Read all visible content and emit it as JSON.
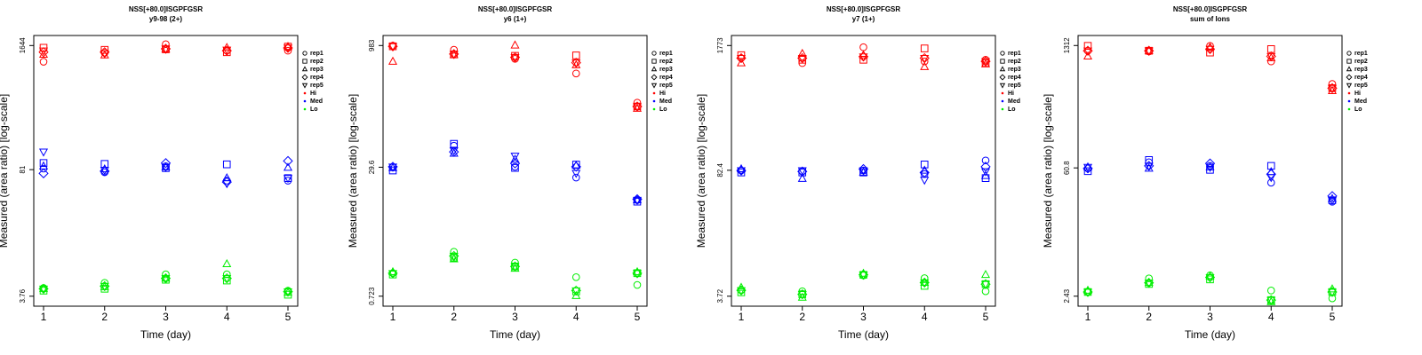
{
  "chart_data": [
    {
      "type": "scatter",
      "title": "NSS[+80.0]ISGPFGSR",
      "subtitle": "y9-98 (2+)",
      "xlabel": "Time (day)",
      "ylabel": "Measured (area ratio) [log-scale]",
      "x": [
        1,
        2,
        3,
        4,
        5
      ],
      "xlim": [
        0.84,
        5.16
      ],
      "xticks": [
        1,
        2,
        3,
        4,
        5
      ],
      "ylim": [
        2.95,
        2097
      ],
      "yticks": [
        3.76,
        81,
        1644
      ],
      "log_y": true,
      "markers": [
        {
          "name": "rep1",
          "shape": "circle"
        },
        {
          "name": "rep2",
          "shape": "square"
        },
        {
          "name": "rep3",
          "shape": "triangle-up"
        },
        {
          "name": "rep4",
          "shape": "diamond"
        },
        {
          "name": "rep5",
          "shape": "triangle-down"
        }
      ],
      "series": [
        {
          "name": "Hi",
          "color": "#ff0000",
          "values": [
            [
              1110,
              1560,
              1320,
              1400,
              1450
            ],
            [
              1380,
              1480,
              1300,
              1400,
              1350
            ],
            [
              1700,
              1500,
              1500,
              1520,
              1520
            ],
            [
              1450,
              1400,
              1560,
              1450,
              1480
            ],
            [
              1450,
              1600,
              1600,
              1550,
              1560
            ]
          ]
        },
        {
          "name": "Med",
          "color": "#0000ff",
          "values": [
            [
              83,
              95,
              88,
              74,
              125
            ],
            [
              76,
              93,
              82,
              78,
              80
            ],
            [
              88,
              84,
              86,
              95,
              86
            ],
            [
              62,
              92,
              66,
              60,
              58
            ],
            [
              62,
              66,
              85,
              100,
              66
            ]
          ]
        },
        {
          "name": "Lo",
          "color": "#00ee00",
          "values": [
            [
              4.6,
              4.3,
              4.5,
              4.5,
              4.5
            ],
            [
              5.2,
              4.5,
              4.7,
              4.8,
              4.8
            ],
            [
              6.4,
              5.6,
              5.8,
              5.8,
              5.8
            ],
            [
              6.4,
              5.5,
              8.2,
              5.8,
              5.8
            ],
            [
              4.3,
              3.9,
              4.1,
              4.2,
              4.2
            ]
          ]
        }
      ]
    },
    {
      "type": "scatter",
      "title": "NSS[+80.0]ISGPFGSR",
      "subtitle": "y6 (1+)",
      "xlabel": "Time (day)",
      "ylabel": "Measured (area ratio) [log-scale]",
      "x": [
        1,
        2,
        3,
        4,
        5
      ],
      "xlim": [
        0.84,
        5.16
      ],
      "xticks": [
        1,
        2,
        3,
        4,
        5
      ],
      "ylim": [
        0.542,
        1312
      ],
      "yticks": [
        0.723,
        29.6,
        983
      ],
      "log_y": true,
      "markers": [
        {
          "name": "rep1",
          "shape": "circle"
        },
        {
          "name": "rep2",
          "shape": "square"
        },
        {
          "name": "rep3",
          "shape": "triangle-up"
        },
        {
          "name": "rep4",
          "shape": "diamond"
        },
        {
          "name": "rep5",
          "shape": "triangle-down"
        }
      ],
      "series": [
        {
          "name": "Hi",
          "color": "#ff0000",
          "values": [
            [
              980,
              960,
              620,
              960,
              960
            ],
            [
              870,
              760,
              750,
              770,
              770
            ],
            [
              670,
              730,
              990,
              700,
              700
            ],
            [
              440,
              740,
              560,
              600,
              600
            ],
            [
              190,
              170,
              160,
              170,
              170
            ]
          ]
        },
        {
          "name": "Med",
          "color": "#0000ff",
          "values": [
            [
              29.6,
              27,
              29,
              30,
              30
            ],
            [
              55,
              58,
              44,
              46,
              48
            ],
            [
              30,
              29,
              37,
              33,
              41
            ],
            [
              22,
              32,
              31,
              30,
              25
            ],
            [
              11.5,
              11,
              11.5,
              11.8,
              11.5
            ]
          ]
        },
        {
          "name": "Lo",
          "color": "#00ee00",
          "values": [
            [
              1.4,
              1.35,
              1.45,
              1.4,
              1.4
            ],
            [
              2.6,
              2.2,
              2.1,
              2.3,
              2.3
            ],
            [
              1.9,
              1.7,
              1.6,
              1.7,
              1.7
            ],
            [
              1.25,
              0.83,
              0.73,
              0.85,
              0.85
            ],
            [
              1.0,
              1.4,
              1.45,
              1.4,
              1.4
            ]
          ]
        }
      ]
    },
    {
      "type": "scatter",
      "title": "NSS[+80.0]ISGPFGSR",
      "subtitle": "y7 (1+)",
      "xlabel": "Time (day)",
      "ylabel": "Measured (area ratio) [log-scale]",
      "x": [
        1,
        2,
        3,
        4,
        5
      ],
      "xlim": [
        0.84,
        5.16
      ],
      "xticks": [
        1,
        2,
        3,
        4,
        5
      ],
      "ylim": [
        2.91,
        2269
      ],
      "yticks": [
        3.72,
        82.4,
        1773
      ],
      "log_y": true,
      "markers": [
        {
          "name": "rep1",
          "shape": "circle"
        },
        {
          "name": "rep2",
          "shape": "square"
        },
        {
          "name": "rep3",
          "shape": "triangle-up"
        },
        {
          "name": "rep4",
          "shape": "diamond"
        },
        {
          "name": "rep5",
          "shape": "triangle-down"
        }
      ],
      "series": [
        {
          "name": "Hi",
          "color": "#ff0000",
          "values": [
            [
              1300,
              1400,
              1150,
              1300,
              1300
            ],
            [
              1150,
              1250,
              1450,
              1300,
              1300
            ],
            [
              1700,
              1250,
              1400,
              1350,
              1350
            ],
            [
              1200,
              1650,
              1050,
              1300,
              1300
            ],
            [
              1250,
              1150,
              1120,
              1200,
              1200
            ]
          ]
        },
        {
          "name": "Med",
          "color": "#0000ff",
          "values": [
            [
              82,
              78,
              85,
              82,
              82
            ],
            [
              80,
              78,
              67,
              80,
              82
            ],
            [
              82,
              78,
              78,
              85,
              82
            ],
            [
              75,
              95,
              82,
              78,
              65
            ],
            [
              105,
              68,
              72,
              90,
              80
            ]
          ]
        },
        {
          "name": "Lo",
          "color": "#00ee00",
          "values": [
            [
              4.3,
              4.1,
              4.6,
              4.3,
              4.3
            ],
            [
              4.2,
              3.9,
              3.6,
              3.9,
              3.9
            ],
            [
              6.2,
              6.3,
              6.5,
              6.3,
              6.3
            ],
            [
              5.8,
              4.8,
              5.2,
              5.2,
              5.2
            ],
            [
              4.2,
              5.0,
              6.3,
              5.0,
              5.0
            ]
          ]
        }
      ]
    },
    {
      "type": "scatter",
      "title": "NSS[+80.0]ISGPFGSR",
      "subtitle": "sum of Ions",
      "xlabel": "Time (day)",
      "ylabel": "Measured (area ratio) [log-scale]",
      "x": [
        1,
        2,
        3,
        4,
        5
      ],
      "xlim": [
        0.84,
        5.16
      ],
      "xticks": [
        1,
        2,
        3,
        4,
        5
      ],
      "ylim": [
        1.89,
        1687
      ],
      "yticks": [
        2.43,
        60.8,
        1312
      ],
      "log_y": true,
      "markers": [
        {
          "name": "rep1",
          "shape": "circle"
        },
        {
          "name": "rep2",
          "shape": "square"
        },
        {
          "name": "rep3",
          "shape": "triangle-up"
        },
        {
          "name": "rep4",
          "shape": "diamond"
        },
        {
          "name": "rep5",
          "shape": "triangle-down"
        }
      ],
      "series": [
        {
          "name": "Hi",
          "color": "#ff0000",
          "values": [
            [
              1150,
              1300,
              1000,
              1150,
              1150
            ],
            [
              1130,
              1150,
              1150,
              1150,
              1150
            ],
            [
              1300,
              1100,
              1250,
              1200,
              1200
            ],
            [
              880,
              1200,
              960,
              1000,
              1000
            ],
            [
              500,
              450,
              420,
              450,
              450
            ]
          ]
        },
        {
          "name": "Med",
          "color": "#0000ff",
          "values": [
            [
              60,
              56,
              62,
              60,
              62
            ],
            [
              70,
              74,
              60,
              64,
              64
            ],
            [
              64,
              58,
              62,
              68,
              62
            ],
            [
              42,
              64,
              55,
              52,
              48
            ],
            [
              26,
              27,
              28,
              30,
              27
            ]
          ]
        },
        {
          "name": "Lo",
          "color": "#00ee00",
          "values": [
            [
              2.7,
              2.7,
              2.8,
              2.7,
              2.7
            ],
            [
              3.8,
              3.3,
              3.4,
              3.4,
              3.4
            ],
            [
              4.1,
              3.7,
              4.0,
              3.9,
              3.9
            ],
            [
              2.8,
              2.2,
              2.1,
              2.2,
              2.2
            ],
            [
              2.3,
              2.7,
              2.9,
              2.7,
              2.7
            ]
          ]
        }
      ]
    }
  ]
}
